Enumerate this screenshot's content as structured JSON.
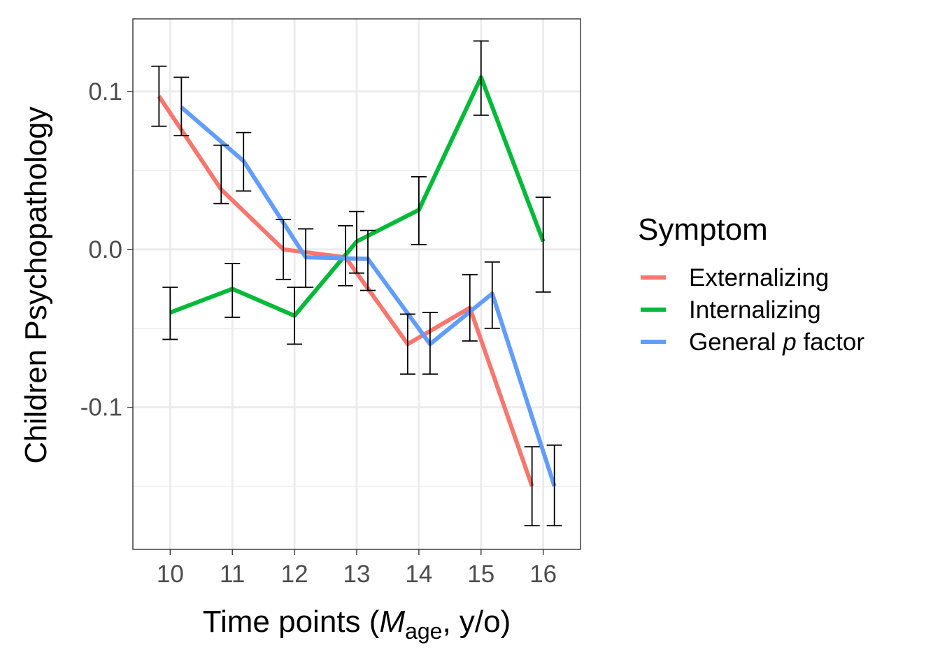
{
  "chart_data": {
    "type": "line",
    "xlabel_parts": {
      "prefix": "Time points (",
      "italic": "M",
      "sub": "age",
      "suffix": ", y/o)"
    },
    "ylabel": "Children Psychopathology",
    "x_ticks": [
      "10",
      "11",
      "12",
      "13",
      "14",
      "15",
      "16"
    ],
    "y_ticks": [
      "0.1",
      "0.0",
      "-0.1"
    ],
    "y_tick_values": [
      0.1,
      0.0,
      -0.1
    ],
    "xlim": [
      9.4,
      16.6
    ],
    "ylim": [
      -0.19,
      0.146
    ],
    "grid": true,
    "error_bars": true,
    "legend": {
      "title": "Symptom",
      "position": "right",
      "entries": [
        {
          "label": "Externalizing",
          "color": "#F8766D"
        },
        {
          "label": "Internalizing",
          "color": "#00BA38"
        },
        {
          "label": "General p factor",
          "label_prefix": "General ",
          "label_italic": "p",
          "label_suffix": " factor",
          "color": "#619CFF"
        }
      ]
    },
    "x": [
      10,
      11,
      12,
      13,
      14,
      15,
      16
    ],
    "series": [
      {
        "name": "Externalizing",
        "color": "#F8766D",
        "values": [
          0.097,
          0.038,
          0.0,
          -0.005,
          -0.06,
          -0.037,
          -0.15
        ],
        "error_low": [
          0.078,
          0.029,
          -0.019,
          -0.023,
          -0.079,
          -0.058,
          -0.175
        ],
        "error_high": [
          0.116,
          0.066,
          0.019,
          0.015,
          -0.041,
          -0.016,
          -0.125
        ]
      },
      {
        "name": "Internalizing",
        "color": "#00BA38",
        "values": [
          -0.04,
          -0.025,
          -0.042,
          0.005,
          0.025,
          0.109,
          0.005
        ],
        "error_low": [
          -0.057,
          -0.043,
          -0.06,
          -0.015,
          0.003,
          0.085,
          -0.027
        ],
        "error_high": [
          -0.024,
          -0.009,
          -0.024,
          0.024,
          0.046,
          0.132,
          0.033
        ]
      },
      {
        "name": "General p factor",
        "color": "#619CFF",
        "values": [
          0.09,
          0.056,
          -0.005,
          -0.006,
          -0.06,
          -0.028,
          -0.15
        ],
        "error_low": [
          0.072,
          0.037,
          -0.024,
          -0.026,
          -0.079,
          -0.05,
          -0.175
        ],
        "error_high": [
          0.109,
          0.074,
          0.013,
          0.012,
          -0.04,
          -0.008,
          -0.124
        ]
      }
    ]
  }
}
